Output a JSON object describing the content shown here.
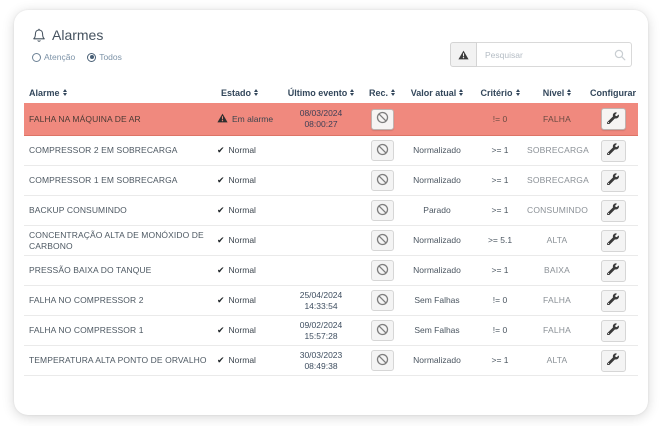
{
  "header": {
    "title": "Alarmes"
  },
  "filters": {
    "options": [
      {
        "label": "Atenção",
        "selected": false
      },
      {
        "label": "Todos",
        "selected": true
      }
    ]
  },
  "search": {
    "placeholder": "Pesquisar"
  },
  "colors": {
    "alarm_row_bg": "#f0897e",
    "header_text": "#33475b"
  },
  "icons": {
    "bell": "bell-icon",
    "warning": "warning-triangle-icon",
    "check": "check-icon",
    "ban": "ban-circle-icon",
    "wrench": "wrench-icon",
    "magnifier": "search-icon"
  },
  "table": {
    "columns": [
      {
        "label": "Alarme",
        "sortable": true,
        "align": "left"
      },
      {
        "label": "Estado",
        "sortable": true,
        "align": "left"
      },
      {
        "label": "Último evento",
        "sortable": true,
        "align": "center"
      },
      {
        "label": "Rec.",
        "sortable": true,
        "align": "center"
      },
      {
        "label": "Valor atual",
        "sortable": true,
        "align": "center"
      },
      {
        "label": "Critério",
        "sortable": true,
        "align": "center"
      },
      {
        "label": "Nível",
        "sortable": true,
        "align": "center"
      },
      {
        "label": "Configurar",
        "sortable": false,
        "align": "center"
      }
    ],
    "rows": [
      {
        "alarme": "FALHA NA MÁQUINA DE AR",
        "estado": "Em alarme",
        "in_alarm": true,
        "event_date": "08/03/2024",
        "event_time": "08:00:27",
        "valor_atual": "",
        "criterio": "!= 0",
        "nivel": "FALHA"
      },
      {
        "alarme": "COMPRESSOR 2 EM SOBRECARGA",
        "estado": "Normal",
        "in_alarm": false,
        "event_date": "",
        "event_time": "",
        "valor_atual": "Normalizado",
        "criterio": ">= 1",
        "nivel": "SOBRECARGA"
      },
      {
        "alarme": "COMPRESSOR 1 EM SOBRECARGA",
        "estado": "Normal",
        "in_alarm": false,
        "event_date": "",
        "event_time": "",
        "valor_atual": "Normalizado",
        "criterio": ">= 1",
        "nivel": "SOBRECARGA"
      },
      {
        "alarme": "BACKUP CONSUMINDO",
        "estado": "Normal",
        "in_alarm": false,
        "event_date": "",
        "event_time": "",
        "valor_atual": "Parado",
        "criterio": ">= 1",
        "nivel": "CONSUMINDO"
      },
      {
        "alarme": "CONCENTRAÇÃO ALTA DE MONÓXIDO DE CARBONO",
        "estado": "Normal",
        "in_alarm": false,
        "event_date": "",
        "event_time": "",
        "valor_atual": "Normalizado",
        "criterio": ">= 5.1",
        "nivel": "ALTA"
      },
      {
        "alarme": "PRESSÃO BAIXA DO TANQUE",
        "estado": "Normal",
        "in_alarm": false,
        "event_date": "",
        "event_time": "",
        "valor_atual": "Normalizado",
        "criterio": ">= 1",
        "nivel": "BAIXA"
      },
      {
        "alarme": "FALHA NO COMPRESSOR 2",
        "estado": "Normal",
        "in_alarm": false,
        "event_date": "25/04/2024",
        "event_time": "14:33:54",
        "valor_atual": "Sem Falhas",
        "criterio": "!= 0",
        "nivel": "FALHA"
      },
      {
        "alarme": "FALHA NO COMPRESSOR 1",
        "estado": "Normal",
        "in_alarm": false,
        "event_date": "09/02/2024",
        "event_time": "15:57:28",
        "valor_atual": "Sem Falhas",
        "criterio": "!= 0",
        "nivel": "FALHA"
      },
      {
        "alarme": "TEMPERATURA ALTA PONTO DE ORVALHO",
        "estado": "Normal",
        "in_alarm": false,
        "event_date": "30/03/2023",
        "event_time": "08:49:38",
        "valor_atual": "Normalizado",
        "criterio": ">= 1",
        "nivel": "ALTA"
      }
    ]
  }
}
